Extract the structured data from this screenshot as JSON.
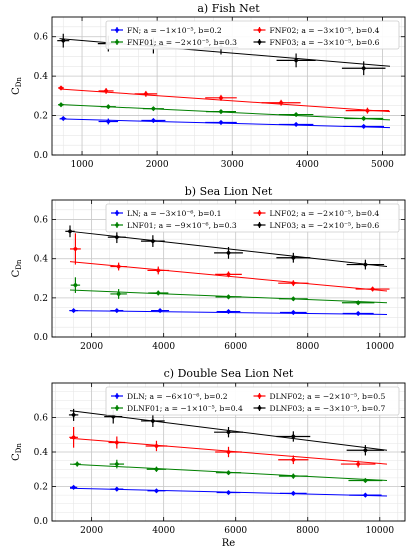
{
  "chart_data": [
    {
      "type": "scatter",
      "title": "a) Fish Net",
      "xlabel": "",
      "ylabel": "C_Dn",
      "xlim": [
        600,
        5300
      ],
      "ylim": [
        0.0,
        0.7
      ],
      "xticks": [
        1000,
        2000,
        3000,
        4000,
        5000
      ],
      "yticks": [
        0.0,
        0.2,
        0.4,
        0.6
      ],
      "xtick_labels": [
        "1000",
        "2000",
        "3000",
        "4000",
        "5000"
      ],
      "ytick_labels": [
        "0.0",
        "0.2",
        "0.4",
        "0.6"
      ],
      "grid": true,
      "legend": "top, two columns",
      "series": [
        {
          "name": "FN",
          "label": "FN; a = −1×10⁻⁵, b=0.2",
          "color": "#0000ff",
          "x": [
            750,
            1350,
            1950,
            2850,
            3850,
            4750
          ],
          "y": [
            0.185,
            0.17,
            0.175,
            0.165,
            0.155,
            0.145
          ],
          "xerr": [
            40,
            130,
            160,
            210,
            230,
            270
          ],
          "yerr": [
            0.008,
            0.015,
            0.01,
            0.008,
            0.008,
            0.01
          ],
          "fit": [
            [
              700,
              0.183
            ],
            [
              5100,
              0.139
            ]
          ]
        },
        {
          "name": "FNF01",
          "label": "FNF01; a = −2×10⁻⁵, b=0.3",
          "color": "#008000",
          "x": [
            720,
            1350,
            1950,
            2850,
            3850,
            4750
          ],
          "y": [
            0.255,
            0.245,
            0.235,
            0.22,
            0.205,
            0.185
          ],
          "xerr": [
            40,
            100,
            140,
            200,
            230,
            260
          ],
          "yerr": [
            0.008,
            0.01,
            0.008,
            0.008,
            0.008,
            0.008
          ],
          "fit": [
            [
              700,
              0.256
            ],
            [
              5100,
              0.178
            ]
          ]
        },
        {
          "name": "FNF02",
          "label": "FNF02; a = −3×10⁻⁵, b=0.4",
          "color": "#ff0000",
          "x": [
            720,
            1320,
            1850,
            2850,
            3650,
            4800
          ],
          "y": [
            0.34,
            0.325,
            0.31,
            0.29,
            0.265,
            0.225
          ],
          "xerr": [
            40,
            100,
            150,
            210,
            260,
            290
          ],
          "yerr": [
            0.01,
            0.015,
            0.015,
            0.015,
            0.015,
            0.015
          ],
          "fit": [
            [
              700,
              0.335
            ],
            [
              5100,
              0.22
            ]
          ]
        },
        {
          "name": "FNF03",
          "label": "FNF03; a = −3×10⁻⁵, b=0.6",
          "color": "#000000",
          "x": [
            750,
            1350,
            1950,
            2850,
            3850,
            4750
          ],
          "y": [
            0.58,
            0.565,
            0.555,
            0.545,
            0.48,
            0.44
          ],
          "xerr": [
            80,
            140,
            180,
            230,
            260,
            290
          ],
          "yerr": [
            0.035,
            0.04,
            0.04,
            0.035,
            0.035,
            0.035
          ],
          "fit": [
            [
              700,
              0.59
            ],
            [
              5100,
              0.45
            ]
          ]
        }
      ]
    },
    {
      "type": "scatter",
      "title": "b) Sea Lion Net",
      "xlabel": "",
      "ylabel": "C_Dn",
      "xlim": [
        900,
        10700
      ],
      "ylim": [
        0.0,
        0.7
      ],
      "xticks": [
        2000,
        4000,
        6000,
        8000,
        10000
      ],
      "yticks": [
        0.0,
        0.2,
        0.4,
        0.6
      ],
      "xtick_labels": [
        "2000",
        "4000",
        "6000",
        "8000",
        "10000"
      ],
      "ytick_labels": [
        "0.0",
        "0.2",
        "0.4",
        "0.6"
      ],
      "grid": true,
      "legend": "top, two columns",
      "series": [
        {
          "name": "LN",
          "label": "LN; a = −3×10⁻⁶, b=0.1",
          "color": "#0000ff",
          "x": [
            1500,
            2700,
            3900,
            5800,
            7600,
            9400
          ],
          "y": [
            0.135,
            0.135,
            0.135,
            0.13,
            0.125,
            0.12
          ],
          "xerr": [
            120,
            180,
            250,
            330,
            370,
            430
          ],
          "yerr": [
            0.006,
            0.006,
            0.006,
            0.006,
            0.006,
            0.006
          ],
          "fit": [
            [
              1400,
              0.135
            ],
            [
              10200,
              0.115
            ]
          ]
        },
        {
          "name": "LNF01",
          "label": "LNF01; a = −9×10⁻⁶, b=0.3",
          "color": "#008000",
          "x": [
            1550,
            2750,
            3850,
            5800,
            7600,
            9400
          ],
          "y": [
            0.265,
            0.22,
            0.225,
            0.205,
            0.195,
            0.175
          ],
          "xerr": [
            130,
            230,
            280,
            360,
            400,
            450
          ],
          "yerr": [
            0.04,
            0.025,
            0.012,
            0.01,
            0.01,
            0.01
          ],
          "fit": [
            [
              1400,
              0.24
            ],
            [
              10200,
              0.175
            ]
          ]
        },
        {
          "name": "LNF02",
          "label": "LNF02; a = −2×10⁻⁵, b=0.4",
          "color": "#ff0000",
          "x": [
            1550,
            2750,
            3850,
            5800,
            7600,
            9800
          ],
          "y": [
            0.45,
            0.36,
            0.34,
            0.32,
            0.275,
            0.245
          ],
          "xerr": [
            150,
            230,
            300,
            370,
            420,
            470
          ],
          "yerr": [
            0.08,
            0.02,
            0.02,
            0.015,
            0.015,
            0.012
          ],
          "fit": [
            [
              1400,
              0.385
            ],
            [
              10200,
              0.235
            ]
          ]
        },
        {
          "name": "LNF03",
          "label": "LNF03; a = −2×10⁻⁵, b=0.6",
          "color": "#000000",
          "x": [
            1400,
            2700,
            3700,
            5800,
            7600,
            9600
          ],
          "y": [
            0.54,
            0.51,
            0.49,
            0.43,
            0.405,
            0.37
          ],
          "xerr": [
            130,
            250,
            330,
            400,
            470,
            520
          ],
          "yerr": [
            0.03,
            0.03,
            0.03,
            0.03,
            0.025,
            0.025
          ],
          "fit": [
            [
              1400,
              0.54
            ],
            [
              10200,
              0.36
            ]
          ]
        }
      ]
    },
    {
      "type": "scatter",
      "title": "c) Double Sea Lion Net",
      "xlabel": "Re",
      "ylabel": "C_Dn",
      "xlim": [
        900,
        10700
      ],
      "ylim": [
        0.0,
        0.8
      ],
      "xticks": [
        2000,
        4000,
        6000,
        8000,
        10000
      ],
      "yticks": [
        0.0,
        0.2,
        0.4,
        0.6
      ],
      "xtick_labels": [
        "2000",
        "4000",
        "6000",
        "8000",
        "10000"
      ],
      "ytick_labels": [
        "0.0",
        "0.2",
        "0.4",
        "0.6"
      ],
      "grid": true,
      "legend": "top, two columns",
      "series": [
        {
          "name": "DLN",
          "label": "DLN; a = −6×10⁻⁶, b=0.2",
          "color": "#0000ff",
          "x": [
            1500,
            2700,
            3800,
            5800,
            7600,
            9600
          ],
          "y": [
            0.195,
            0.185,
            0.175,
            0.165,
            0.16,
            0.15
          ],
          "xerr": [
            100,
            180,
            250,
            330,
            370,
            450
          ],
          "yerr": [
            0.008,
            0.008,
            0.008,
            0.008,
            0.008,
            0.008
          ],
          "fit": [
            [
              1400,
              0.19
            ],
            [
              10200,
              0.145
            ]
          ]
        },
        {
          "name": "DLNF01",
          "label": "DLNF01; a = −1×10⁻⁵, b=0.4",
          "color": "#008000",
          "x": [
            1600,
            2700,
            3800,
            5800,
            7600,
            9600
          ],
          "y": [
            0.33,
            0.33,
            0.3,
            0.28,
            0.26,
            0.235
          ],
          "xerr": [
            100,
            200,
            270,
            350,
            400,
            470
          ],
          "yerr": [
            0.015,
            0.025,
            0.015,
            0.012,
            0.015,
            0.012
          ],
          "fit": [
            [
              1400,
              0.33
            ],
            [
              10200,
              0.235
            ]
          ]
        },
        {
          "name": "DLNF02",
          "label": "DLNF02; a = −2×10⁻⁵, b=0.5",
          "color": "#ff0000",
          "x": [
            1500,
            2700,
            3800,
            5800,
            7600,
            9400
          ],
          "y": [
            0.485,
            0.455,
            0.435,
            0.4,
            0.355,
            0.33
          ],
          "xerr": [
            120,
            230,
            300,
            370,
            420,
            480
          ],
          "yerr": [
            0.06,
            0.035,
            0.03,
            0.03,
            0.025,
            0.02
          ],
          "fit": [
            [
              1400,
              0.48
            ],
            [
              10200,
              0.33
            ]
          ]
        },
        {
          "name": "DLNF03",
          "label": "DLNF03; a = −3×10⁻⁵, b=0.7",
          "color": "#000000",
          "x": [
            1500,
            2600,
            3700,
            5800,
            7600,
            9600
          ],
          "y": [
            0.615,
            0.605,
            0.58,
            0.515,
            0.49,
            0.41
          ],
          "xerr": [
            130,
            250,
            330,
            400,
            470,
            520
          ],
          "yerr": [
            0.035,
            0.04,
            0.035,
            0.03,
            0.03,
            0.03
          ],
          "fit": [
            [
              1400,
              0.64
            ],
            [
              10200,
              0.41
            ]
          ]
        }
      ]
    }
  ]
}
